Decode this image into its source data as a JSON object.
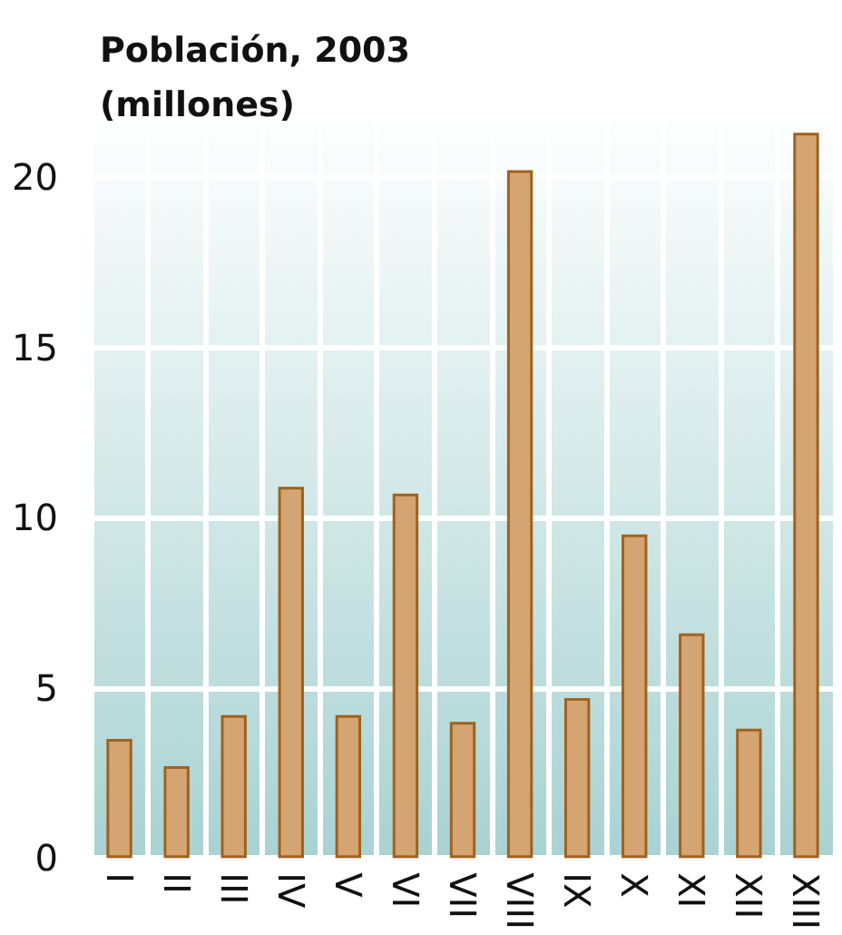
{
  "chart_data": {
    "type": "bar",
    "title": "Población, 2003\n(millones)",
    "categories": [
      "I",
      "II",
      "III",
      "IV",
      "V",
      "VI",
      "VII",
      "VIII",
      "IX",
      "X",
      "XI",
      "XII",
      "XIII"
    ],
    "values": [
      3.5,
      2.7,
      4.2,
      10.9,
      4.2,
      10.7,
      4.0,
      20.2,
      4.7,
      9.5,
      6.6,
      3.8,
      21.3
    ],
    "color": "#d4a473",
    "ylim": [
      0,
      22
    ],
    "yticks": [
      0,
      5,
      10,
      15,
      20
    ],
    "grid": true
  }
}
